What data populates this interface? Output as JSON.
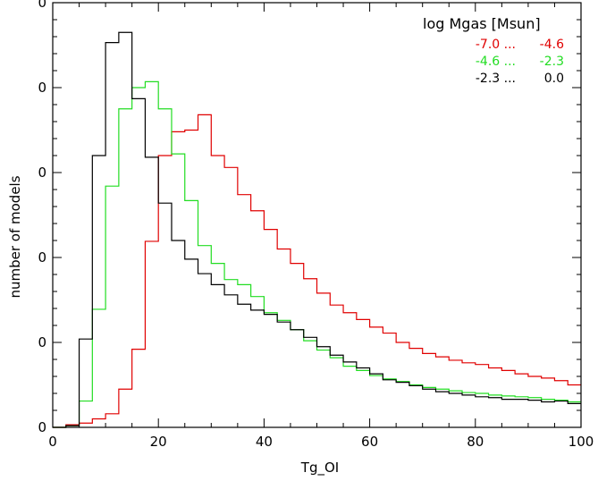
{
  "chart_data": {
    "type": "line",
    "title": "",
    "xlabel": "Tg_OI",
    "ylabel": "number of models",
    "xlim": [
      0,
      100
    ],
    "ylim": [
      0,
      5
    ],
    "x_ticks": [
      0,
      20,
      40,
      60,
      80,
      100
    ],
    "x_tick_labels": [
      "0",
      "20",
      "40",
      "60",
      "80",
      "100"
    ],
    "y_ticks": [
      0,
      1,
      2,
      3,
      4,
      5
    ],
    "y_tick_labels": [
      "0",
      "0",
      "0",
      "0",
      "0",
      "0"
    ],
    "bin_edges": [
      0,
      2.5,
      5,
      7.5,
      10,
      12.5,
      15,
      17.5,
      20,
      22.5,
      25,
      27.5,
      30,
      32.5,
      35,
      37.5,
      40,
      42.5,
      45,
      47.5,
      50,
      52.5,
      55,
      57.5,
      60,
      62.5,
      65,
      67.5,
      70,
      72.5,
      75,
      77.5,
      80,
      82.5,
      85,
      87.5,
      90,
      92.5,
      95,
      97.5,
      100
    ],
    "legend": {
      "title": "log Mgas [Msun]",
      "position": "top-right"
    },
    "series": [
      {
        "name": "-7.0 ... -4.6",
        "legend_left": "-7.0 ...",
        "legend_right": "-4.6",
        "color": "#e00000",
        "values": [
          0.0,
          0.03,
          0.05,
          0.1,
          0.16,
          0.45,
          0.92,
          2.19,
          3.2,
          3.48,
          3.5,
          3.68,
          3.2,
          3.06,
          2.74,
          2.55,
          2.33,
          2.1,
          1.93,
          1.75,
          1.58,
          1.44,
          1.35,
          1.27,
          1.18,
          1.11,
          1.0,
          0.93,
          0.87,
          0.83,
          0.79,
          0.76,
          0.74,
          0.7,
          0.67,
          0.63,
          0.6,
          0.58,
          0.55,
          0.5
        ]
      },
      {
        "name": "-4.6 ... -2.3",
        "legend_left": "-4.6 ...",
        "legend_right": "-2.3",
        "color": "#22dd22",
        "values": [
          0.0,
          0.02,
          0.31,
          1.39,
          2.84,
          3.75,
          4.0,
          4.07,
          3.75,
          3.22,
          2.67,
          2.14,
          1.93,
          1.74,
          1.68,
          1.54,
          1.35,
          1.26,
          1.15,
          1.02,
          0.91,
          0.82,
          0.72,
          0.67,
          0.61,
          0.57,
          0.54,
          0.5,
          0.47,
          0.45,
          0.43,
          0.41,
          0.4,
          0.38,
          0.37,
          0.36,
          0.35,
          0.33,
          0.32,
          0.3
        ]
      },
      {
        "name": "-2.3 ... 0.0",
        "legend_left": "-2.3 ...",
        "legend_right": "0.0",
        "color": "#000000",
        "values": [
          0.0,
          0.02,
          1.04,
          3.2,
          4.53,
          4.65,
          3.87,
          3.18,
          2.64,
          2.2,
          1.98,
          1.81,
          1.68,
          1.56,
          1.45,
          1.38,
          1.33,
          1.24,
          1.15,
          1.06,
          0.95,
          0.85,
          0.77,
          0.7,
          0.63,
          0.56,
          0.53,
          0.49,
          0.45,
          0.42,
          0.4,
          0.38,
          0.36,
          0.35,
          0.33,
          0.33,
          0.32,
          0.3,
          0.31,
          0.28
        ]
      }
    ]
  }
}
